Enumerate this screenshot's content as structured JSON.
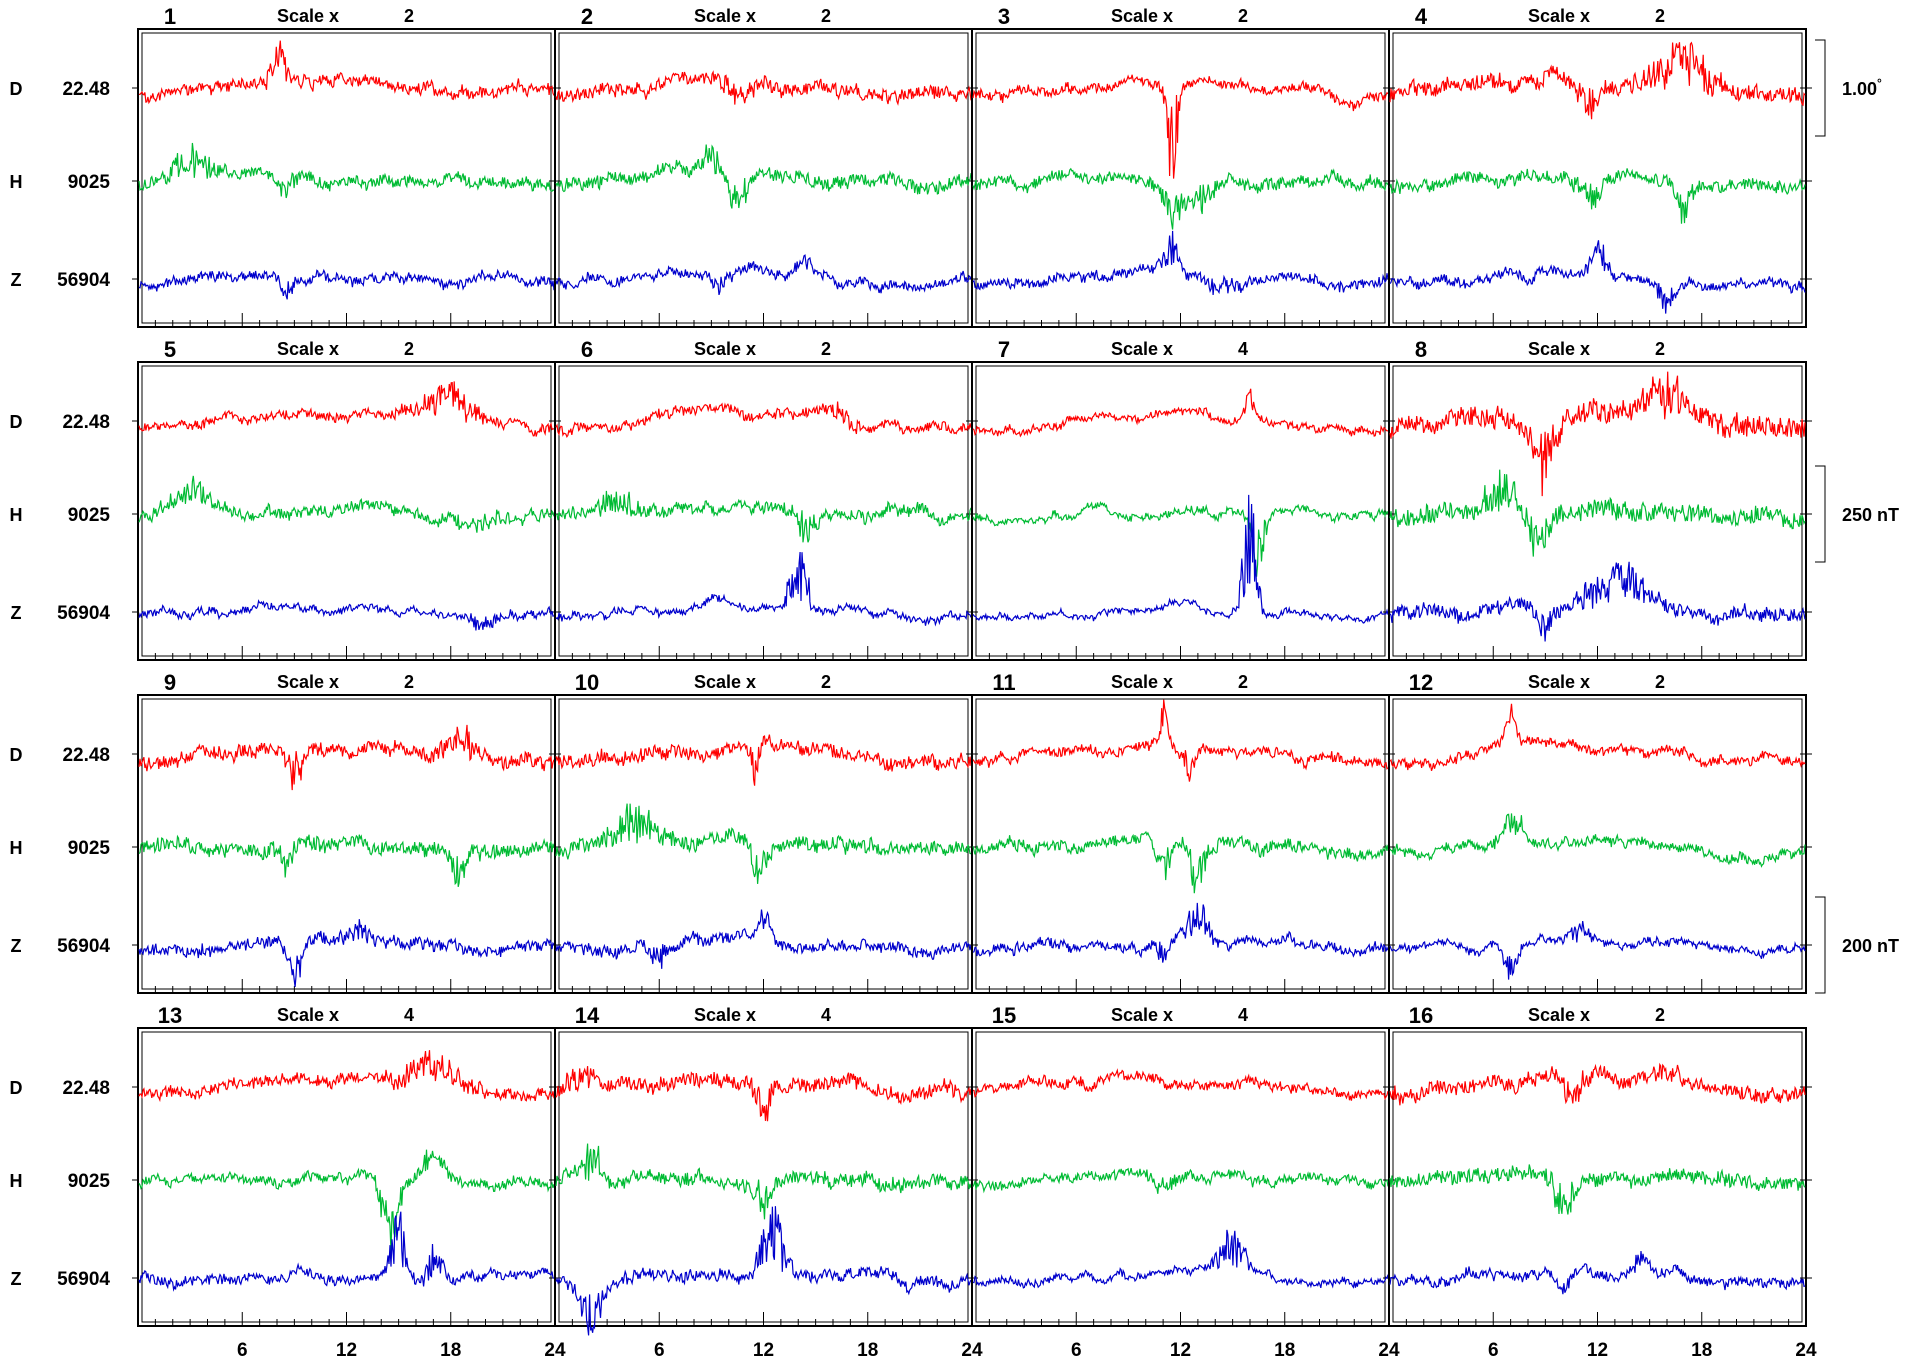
{
  "chart_data": {
    "type": "line",
    "title": "",
    "series": [
      {
        "key": "D",
        "name": "D",
        "baseline_label": "22.48",
        "color": "#ff0000"
      },
      {
        "key": "H",
        "name": "H",
        "baseline_label": "9025",
        "color": "#00bb33"
      },
      {
        "key": "Z",
        "name": "Z",
        "baseline_label": "56904",
        "color": "#0000cc"
      }
    ],
    "scale_label": "Scale x",
    "x_axis": {
      "range": [
        0,
        24
      ],
      "tick_labels": [
        "6",
        "12",
        "18",
        "24"
      ],
      "tick_values": [
        6,
        12,
        18,
        24
      ],
      "start_label": "24"
    },
    "scale_bars": [
      {
        "label": "1.00",
        "superscript": "°",
        "row": 1,
        "component": "D"
      },
      {
        "label": "250 nT",
        "row": 2,
        "component": "H"
      },
      {
        "label": "200 nT",
        "row": 3,
        "component": "Z"
      }
    ],
    "days": [
      {
        "day": "1",
        "scale": "2",
        "D": {
          "disturbance": 0.5,
          "events": [
            {
              "t": 8.0,
              "a": 1.4,
              "w": 0.5
            }
          ]
        },
        "H": {
          "disturbance": 0.5,
          "events": [
            {
              "t": 3.0,
              "a": 0.8,
              "w": 1.5
            },
            {
              "t": 8.5,
              "a": -0.7,
              "w": 0.6
            }
          ]
        },
        "Z": {
          "disturbance": 0.4,
          "events": [
            {
              "t": 8.5,
              "a": -0.6,
              "w": 0.5
            }
          ]
        }
      },
      {
        "day": "2",
        "scale": "2",
        "D": {
          "disturbance": 0.6,
          "events": [
            {
              "t": 10.5,
              "a": -0.6,
              "w": 1.0
            }
          ]
        },
        "H": {
          "disturbance": 0.6,
          "events": [
            {
              "t": 9.0,
              "a": 1.0,
              "w": 0.5
            },
            {
              "t": 10.5,
              "a": -1.2,
              "w": 0.5
            }
          ]
        },
        "Z": {
          "disturbance": 0.4,
          "events": [
            {
              "t": 9.5,
              "a": -0.6,
              "w": 0.5
            },
            {
              "t": 14.5,
              "a": 0.5,
              "w": 0.6
            }
          ]
        }
      },
      {
        "day": "3",
        "scale": "2",
        "D": {
          "disturbance": 0.4,
          "events": [
            {
              "t": 11.5,
              "a": -2.8,
              "w": 0.4
            }
          ]
        },
        "H": {
          "disturbance": 0.5,
          "events": [
            {
              "t": 11.5,
              "a": -1.2,
              "w": 0.6
            },
            {
              "t": 13.0,
              "a": -0.8,
              "w": 1.2
            }
          ]
        },
        "Z": {
          "disturbance": 0.4,
          "events": [
            {
              "t": 11.5,
              "a": 1.0,
              "w": 0.5
            },
            {
              "t": 14.5,
              "a": -0.5,
              "w": 1.0
            }
          ]
        }
      },
      {
        "day": "4",
        "scale": "2",
        "D": {
          "disturbance": 0.7,
          "events": [
            {
              "t": 11.5,
              "a": -1.0,
              "w": 0.8
            },
            {
              "t": 17.0,
              "a": 1.4,
              "w": 2.0
            }
          ]
        },
        "H": {
          "disturbance": 0.5,
          "events": [
            {
              "t": 11.5,
              "a": -1.0,
              "w": 0.8
            },
            {
              "t": 17.0,
              "a": -1.2,
              "w": 0.5
            }
          ]
        },
        "Z": {
          "disturbance": 0.4,
          "events": [
            {
              "t": 12.0,
              "a": 0.9,
              "w": 0.6
            },
            {
              "t": 16.0,
              "a": -0.7,
              "w": 0.8
            }
          ]
        }
      },
      {
        "day": "5",
        "scale": "2",
        "D": {
          "disturbance": 0.4,
          "events": [
            {
              "t": 18.0,
              "a": 1.0,
              "w": 2.0
            }
          ]
        },
        "H": {
          "disturbance": 0.5,
          "events": [
            {
              "t": 3.0,
              "a": 0.8,
              "w": 1.5
            },
            {
              "t": 20.0,
              "a": -0.4,
              "w": 1.5
            }
          ]
        },
        "Z": {
          "disturbance": 0.3,
          "events": [
            {
              "t": 20.0,
              "a": -0.5,
              "w": 1.0
            }
          ]
        }
      },
      {
        "day": "6",
        "scale": "2",
        "D": {
          "disturbance": 0.4,
          "events": [
            {
              "t": 16.0,
              "a": 0.5,
              "w": 1.5
            }
          ]
        },
        "H": {
          "disturbance": 0.5,
          "events": [
            {
              "t": 3.5,
              "a": 0.7,
              "w": 1.5
            },
            {
              "t": 14.5,
              "a": -1.0,
              "w": 0.8
            }
          ]
        },
        "Z": {
          "disturbance": 0.3,
          "events": [
            {
              "t": 14.0,
              "a": 1.8,
              "w": 0.7
            }
          ]
        }
      },
      {
        "day": "7",
        "scale": "4",
        "D": {
          "disturbance": 0.3,
          "events": [
            {
              "t": 16.0,
              "a": 0.8,
              "w": 0.3
            }
          ]
        },
        "H": {
          "disturbance": 0.3,
          "events": [
            {
              "t": 16.5,
              "a": -2.0,
              "w": 0.5
            }
          ]
        },
        "Z": {
          "disturbance": 0.2,
          "events": [
            {
              "t": 16.0,
              "a": 3.2,
              "w": 0.5
            }
          ]
        }
      },
      {
        "day": "8",
        "scale": "2",
        "D": {
          "disturbance": 1.0,
          "events": [
            {
              "t": 9.0,
              "a": -1.8,
              "w": 0.8
            },
            {
              "t": 16.0,
              "a": 1.0,
              "w": 1.5
            }
          ]
        },
        "H": {
          "disturbance": 0.8,
          "events": [
            {
              "t": 6.5,
              "a": 1.0,
              "w": 1.2
            },
            {
              "t": 8.5,
              "a": -1.2,
              "w": 0.8
            }
          ]
        },
        "Z": {
          "disturbance": 0.6,
          "events": [
            {
              "t": 9.0,
              "a": -0.8,
              "w": 0.5
            },
            {
              "t": 13.0,
              "a": 1.2,
              "w": 2.0
            }
          ]
        }
      },
      {
        "day": "9",
        "scale": "2",
        "D": {
          "disturbance": 0.6,
          "events": [
            {
              "t": 9.0,
              "a": -1.2,
              "w": 0.5
            },
            {
              "t": 18.5,
              "a": 1.0,
              "w": 1.0
            }
          ]
        },
        "H": {
          "disturbance": 0.6,
          "events": [
            {
              "t": 8.5,
              "a": -0.9,
              "w": 0.5
            },
            {
              "t": 18.5,
              "a": -0.9,
              "w": 0.5
            }
          ]
        },
        "Z": {
          "disturbance": 0.5,
          "events": [
            {
              "t": 9.0,
              "a": -1.2,
              "w": 0.5
            },
            {
              "t": 13.0,
              "a": 0.5,
              "w": 1.0
            }
          ]
        }
      },
      {
        "day": "10",
        "scale": "2",
        "D": {
          "disturbance": 0.6,
          "events": [
            {
              "t": 11.5,
              "a": -1.0,
              "w": 0.4
            }
          ]
        },
        "H": {
          "disturbance": 0.6,
          "events": [
            {
              "t": 4.5,
              "a": 1.2,
              "w": 1.5
            },
            {
              "t": 11.8,
              "a": -1.2,
              "w": 0.5
            }
          ]
        },
        "Z": {
          "disturbance": 0.5,
          "events": [
            {
              "t": 6.0,
              "a": -0.6,
              "w": 0.8
            },
            {
              "t": 12.0,
              "a": 0.9,
              "w": 0.4
            }
          ]
        }
      },
      {
        "day": "11",
        "scale": "2",
        "D": {
          "disturbance": 0.4,
          "events": [
            {
              "t": 11.0,
              "a": 1.2,
              "w": 0.3
            },
            {
              "t": 12.5,
              "a": -0.8,
              "w": 0.5
            }
          ]
        },
        "H": {
          "disturbance": 0.5,
          "events": [
            {
              "t": 11.0,
              "a": -1.0,
              "w": 0.5
            },
            {
              "t": 13.0,
              "a": -1.4,
              "w": 0.6
            }
          ]
        },
        "Z": {
          "disturbance": 0.4,
          "events": [
            {
              "t": 11.0,
              "a": -0.6,
              "w": 0.4
            },
            {
              "t": 13.0,
              "a": 1.3,
              "w": 0.8
            }
          ]
        }
      },
      {
        "day": "12",
        "scale": "2",
        "D": {
          "disturbance": 0.4,
          "events": [
            {
              "t": 7.0,
              "a": 1.0,
              "w": 0.4
            }
          ]
        },
        "H": {
          "disturbance": 0.4,
          "events": [
            {
              "t": 7.0,
              "a": 0.8,
              "w": 1.0
            }
          ]
        },
        "Z": {
          "disturbance": 0.3,
          "events": [
            {
              "t": 7.0,
              "a": -0.9,
              "w": 0.5
            },
            {
              "t": 11.0,
              "a": 0.5,
              "w": 1.0
            }
          ]
        }
      },
      {
        "day": "13",
        "scale": "4",
        "D": {
          "disturbance": 0.5,
          "events": [
            {
              "t": 17.0,
              "a": 0.9,
              "w": 2.0
            }
          ]
        },
        "H": {
          "disturbance": 0.4,
          "events": [
            {
              "t": 14.5,
              "a": -1.8,
              "w": 0.6
            },
            {
              "t": 17.0,
              "a": 0.6,
              "w": 0.8
            }
          ]
        },
        "Z": {
          "disturbance": 0.4,
          "events": [
            {
              "t": 15.0,
              "a": 1.8,
              "w": 0.6
            },
            {
              "t": 17.0,
              "a": 1.2,
              "w": 0.5
            }
          ]
        }
      },
      {
        "day": "14",
        "scale": "4",
        "D": {
          "disturbance": 0.6,
          "events": [
            {
              "t": 1.5,
              "a": 0.8,
              "w": 1.0
            },
            {
              "t": 12.0,
              "a": -1.2,
              "w": 0.6
            }
          ]
        },
        "H": {
          "disturbance": 0.6,
          "events": [
            {
              "t": 2.0,
              "a": 1.1,
              "w": 0.8
            },
            {
              "t": 12.0,
              "a": -1.0,
              "w": 0.6
            }
          ]
        },
        "Z": {
          "disturbance": 0.5,
          "events": [
            {
              "t": 2.0,
              "a": -1.2,
              "w": 0.8
            },
            {
              "t": 12.5,
              "a": 1.8,
              "w": 0.8
            }
          ]
        }
      },
      {
        "day": "15",
        "scale": "4",
        "D": {
          "disturbance": 0.4,
          "events": [
            {
              "t": 6.0,
              "a": 0.3,
              "w": 0.5
            }
          ]
        },
        "H": {
          "disturbance": 0.4,
          "events": [
            {
              "t": 11.0,
              "a": -0.4,
              "w": 1.0
            }
          ]
        },
        "Z": {
          "disturbance": 0.3,
          "events": [
            {
              "t": 15.0,
              "a": 1.2,
              "w": 1.0
            }
          ]
        }
      },
      {
        "day": "16",
        "scale": "2",
        "D": {
          "disturbance": 0.6,
          "events": [
            {
              "t": 10.5,
              "a": -0.9,
              "w": 0.8
            },
            {
              "t": 16.0,
              "a": 0.5,
              "w": 1.5
            }
          ]
        },
        "H": {
          "disturbance": 0.6,
          "events": [
            {
              "t": 10.0,
              "a": -1.0,
              "w": 0.8
            }
          ]
        },
        "Z": {
          "disturbance": 0.4,
          "events": [
            {
              "t": 10.0,
              "a": -0.8,
              "w": 0.5
            },
            {
              "t": 14.5,
              "a": 0.6,
              "w": 0.6
            }
          ]
        }
      }
    ]
  }
}
